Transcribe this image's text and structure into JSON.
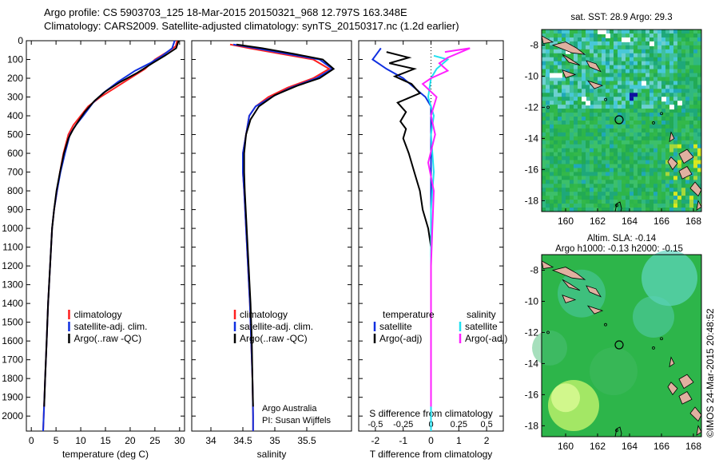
{
  "header": {
    "line1": "Argo profile: CS 5903703_125 18-Mar-2015 20150321_968 12.797S 163.348E",
    "line2": "Climatology: CARS2009. Satellite-adjusted climatology: synTS_20150317.nc (1.2d earlier)"
  },
  "colors": {
    "climatology": "#ff2020",
    "satellite": "#1030e0",
    "argo": "#000000",
    "salinity_sat": "#20e0f0",
    "salinity_argo": "#ff20ff",
    "map_base": "#2db54a",
    "land": "#e0b0a0"
  },
  "chart_data": [
    {
      "type": "line",
      "xlabel": "temperature (deg C)",
      "xlim": [
        -1,
        31
      ],
      "xticks": [
        0,
        5,
        10,
        15,
        20,
        25,
        30
      ],
      "ylim": [
        2080,
        0
      ],
      "yticks": [
        0,
        100,
        200,
        300,
        400,
        500,
        600,
        700,
        800,
        900,
        1000,
        1100,
        1200,
        1300,
        1400,
        1500,
        1600,
        1700,
        1800,
        1900,
        2000
      ],
      "legend": [
        "climatology",
        "satellite-adj. clim.",
        "Argo(..raw -QC)"
      ],
      "legend_colors": [
        "climatology",
        "satellite",
        "argo"
      ],
      "series": [
        {
          "name": "climatology",
          "color": "climatology",
          "points": [
            [
              29.5,
              0
            ],
            [
              29.2,
              30
            ],
            [
              27.5,
              60
            ],
            [
              25,
              100
            ],
            [
              23,
              150
            ],
            [
              20,
              200
            ],
            [
              17,
              250
            ],
            [
              14,
              300
            ],
            [
              11.5,
              350
            ],
            [
              10,
              400
            ],
            [
              8.5,
              450
            ],
            [
              7.5,
              500
            ],
            [
              6.5,
              600
            ],
            [
              5.8,
              700
            ],
            [
              5.2,
              800
            ],
            [
              4.6,
              900
            ],
            [
              4.2,
              1000
            ],
            [
              3.8,
              1200
            ],
            [
              3.4,
              1400
            ],
            [
              3.1,
              1600
            ],
            [
              2.8,
              1800
            ],
            [
              2.5,
              2000
            ],
            [
              2.4,
              2080
            ]
          ]
        },
        {
          "name": "satellite-adj. clim.",
          "color": "satellite",
          "points": [
            [
              29,
              0
            ],
            [
              28.5,
              40
            ],
            [
              26.5,
              80
            ],
            [
              24,
              120
            ],
            [
              21,
              160
            ],
            [
              17.5,
              220
            ],
            [
              14.5,
              280
            ],
            [
              12.5,
              330
            ],
            [
              10.5,
              400
            ],
            [
              9,
              450
            ],
            [
              7.8,
              500
            ],
            [
              6.8,
              600
            ],
            [
              5.9,
              700
            ],
            [
              5.2,
              800
            ],
            [
              4.6,
              900
            ],
            [
              4.2,
              1000
            ],
            [
              3.8,
              1200
            ],
            [
              3.4,
              1400
            ],
            [
              3.1,
              1600
            ],
            [
              2.8,
              1800
            ],
            [
              2.5,
              2000
            ],
            [
              2.4,
              2080
            ]
          ]
        },
        {
          "name": "Argo(..raw -QC)",
          "color": "argo",
          "points": [
            [
              29.8,
              0
            ],
            [
              29.3,
              40
            ],
            [
              27,
              80
            ],
            [
              24.5,
              120
            ],
            [
              21.5,
              170
            ],
            [
              18,
              220
            ],
            [
              15,
              270
            ],
            [
              12.8,
              320
            ],
            [
              10.8,
              380
            ],
            [
              9.5,
              430
            ],
            [
              8.5,
              470
            ],
            [
              7.5,
              520
            ],
            [
              6.6,
              600
            ],
            [
              5.8,
              700
            ],
            [
              5.1,
              800
            ],
            [
              4.6,
              900
            ],
            [
              4.2,
              1000
            ],
            [
              3.8,
              1200
            ],
            [
              3.4,
              1400
            ],
            [
              3.1,
              1600
            ],
            [
              2.8,
              1800
            ],
            [
              2.6,
              1950
            ]
          ]
        }
      ]
    },
    {
      "type": "line",
      "xlabel": "salinity",
      "xlim": [
        33.7,
        36.2
      ],
      "xticks": [
        34,
        34.5,
        35,
        35.5
      ],
      "ylim": [
        2080,
        0
      ],
      "legend": [
        "climatology",
        "satellite-adj. clim.",
        "Argo(..raw -QC)"
      ],
      "legend_colors": [
        "climatology",
        "satellite",
        "argo"
      ],
      "annotation": [
        "Argo Australia",
        "PI: Susan Wijffels"
      ],
      "series": [
        {
          "name": "climatology",
          "color": "climatology",
          "points": [
            [
              34.3,
              20
            ],
            [
              34.6,
              40
            ],
            [
              35.1,
              70
            ],
            [
              35.6,
              100
            ],
            [
              35.85,
              150
            ],
            [
              35.6,
              200
            ],
            [
              35.2,
              250
            ],
            [
              34.9,
              300
            ],
            [
              34.7,
              350
            ],
            [
              34.6,
              400
            ],
            [
              34.55,
              500
            ],
            [
              34.5,
              600
            ],
            [
              34.5,
              700
            ],
            [
              34.52,
              800
            ],
            [
              34.55,
              1000
            ],
            [
              34.58,
              1200
            ],
            [
              34.61,
              1400
            ],
            [
              34.63,
              1600
            ],
            [
              34.65,
              1800
            ],
            [
              34.66,
              2000
            ],
            [
              34.66,
              2080
            ]
          ]
        },
        {
          "name": "satellite-adj. clim.",
          "color": "satellite",
          "points": [
            [
              34.35,
              20
            ],
            [
              34.7,
              40
            ],
            [
              35.2,
              70
            ],
            [
              35.7,
              100
            ],
            [
              35.9,
              150
            ],
            [
              35.65,
              200
            ],
            [
              35.25,
              250
            ],
            [
              34.95,
              300
            ],
            [
              34.7,
              350
            ],
            [
              34.6,
              400
            ],
            [
              34.55,
              500
            ],
            [
              34.5,
              600
            ],
            [
              34.5,
              700
            ],
            [
              34.52,
              800
            ],
            [
              34.55,
              1000
            ],
            [
              34.58,
              1200
            ],
            [
              34.61,
              1400
            ],
            [
              34.63,
              1600
            ],
            [
              34.65,
              1800
            ],
            [
              34.66,
              2000
            ],
            [
              34.66,
              2080
            ]
          ]
        },
        {
          "name": "Argo(..raw -QC)",
          "color": "argo",
          "points": [
            [
              34.4,
              20
            ],
            [
              34.8,
              40
            ],
            [
              35.3,
              70
            ],
            [
              35.75,
              100
            ],
            [
              35.92,
              150
            ],
            [
              35.7,
              200
            ],
            [
              35.35,
              240
            ],
            [
              35.0,
              290
            ],
            [
              34.75,
              350
            ],
            [
              34.62,
              420
            ],
            [
              34.55,
              500
            ],
            [
              34.52,
              600
            ],
            [
              34.52,
              700
            ],
            [
              34.53,
              800
            ],
            [
              34.56,
              1000
            ],
            [
              34.59,
              1200
            ],
            [
              34.62,
              1400
            ],
            [
              34.64,
              1600
            ],
            [
              34.65,
              1800
            ],
            [
              34.66,
              1950
            ]
          ]
        }
      ]
    },
    {
      "type": "line",
      "xlabel": "T difference from climatology",
      "x2label": "S difference from climatology",
      "xlim": [
        -2.6,
        2.6
      ],
      "xticks": [
        -2,
        -1,
        0,
        1,
        2
      ],
      "xticklabels": [
        "-2",
        "-1",
        "0",
        "1",
        "2"
      ],
      "x2ticks": [
        -2,
        -1,
        0,
        1,
        2
      ],
      "x2ticklabels": [
        "-0.5",
        "-0.25",
        "0",
        "0.25",
        "0.5"
      ],
      "ylim": [
        2080,
        0
      ],
      "legend_t": [
        "temperature",
        "satellite",
        "Argo(-adj)"
      ],
      "legend_s": [
        "salinity",
        "satellite",
        "Argo(-adj)"
      ],
      "series": [
        {
          "name": "satellite",
          "color": "satellite",
          "points": [
            [
              -1.8,
              40
            ],
            [
              -2.0,
              80
            ],
            [
              -2.1,
              100
            ],
            [
              -1.6,
              150
            ],
            [
              -1.0,
              200
            ],
            [
              -0.6,
              250
            ],
            [
              -0.2,
              300
            ],
            [
              0,
              350
            ],
            [
              0,
              2080
            ]
          ]
        },
        {
          "name": "Argo(-adj)",
          "color": "argo",
          "points": [
            [
              -1.6,
              60
            ],
            [
              -0.8,
              90
            ],
            [
              -1.5,
              120
            ],
            [
              -0.6,
              150
            ],
            [
              -1.3,
              190
            ],
            [
              -0.7,
              230
            ],
            [
              -0.4,
              280
            ],
            [
              -1.2,
              330
            ],
            [
              -0.9,
              380
            ],
            [
              -1.1,
              430
            ],
            [
              -0.9,
              470
            ],
            [
              -1.0,
              520
            ],
            [
              -0.8,
              600
            ],
            [
              -0.6,
              700
            ],
            [
              -0.4,
              800
            ],
            [
              -0.3,
              900
            ],
            [
              -0.1,
              1000
            ],
            [
              0,
              1100
            ]
          ]
        },
        {
          "name": "salinity satellite",
          "color": "salinity_sat",
          "points": [
            [
              0.1,
              80
            ],
            [
              0.6,
              100
            ],
            [
              0.2,
              150
            ],
            [
              0,
              200
            ],
            [
              -0.1,
              300
            ],
            [
              0.1,
              400
            ],
            [
              0,
              500
            ],
            [
              0.1,
              700
            ],
            [
              0,
              900
            ],
            [
              0,
              2080
            ]
          ]
        },
        {
          "name": "salinity Argo(-adj)",
          "color": "salinity_argo",
          "points": [
            [
              0.5,
              60
            ],
            [
              1.4,
              40
            ],
            [
              0.6,
              90
            ],
            [
              0.3,
              120
            ],
            [
              0.6,
              160
            ],
            [
              0.0,
              200
            ],
            [
              -0.3,
              230
            ],
            [
              0.2,
              300
            ],
            [
              0.0,
              400
            ],
            [
              0.15,
              500
            ],
            [
              -0.1,
              650
            ],
            [
              0.1,
              800
            ],
            [
              0.05,
              1000
            ],
            [
              0,
              1200
            ],
            [
              0,
              1950
            ]
          ]
        }
      ]
    },
    {
      "type": "heatmap",
      "title": "sat. SST: 28.9 Argo: 29.3",
      "xlim": [
        158.5,
        168.5
      ],
      "ylim": [
        -18.7,
        -7.0
      ],
      "xticks": [
        160,
        162,
        164,
        166,
        168
      ],
      "yticks": [
        -8,
        -10,
        -12,
        -14,
        -16,
        -18
      ],
      "marker": {
        "lon": 163.35,
        "lat": -12.8
      }
    },
    {
      "type": "heatmap",
      "title": "Altim. SLA: -0.14",
      "subtitle": "Argo h1000: -0.13 h2000: -0.15",
      "xlim": [
        158.5,
        168.5
      ],
      "ylim": [
        -18.7,
        -7.0
      ],
      "xticks": [
        160,
        162,
        164,
        166,
        168
      ],
      "yticks": [
        -8,
        -10,
        -12,
        -14,
        -16,
        -18
      ],
      "marker": {
        "lon": 163.35,
        "lat": -12.8
      }
    }
  ],
  "footer": {
    "stamp": "©IMOS 24-Mar-2015 20:48:52"
  }
}
